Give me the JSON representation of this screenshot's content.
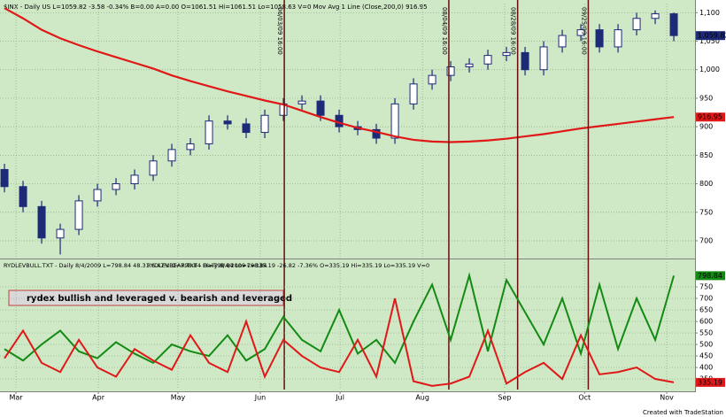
{
  "chart_data": [
    {
      "type": "candlestick",
      "title": "$INX - Daily US  L=1059.82 -3.58 -0.34% B=0.00 A=0.00 O=1061.51 Hi=1061.51 Lo=1058.63 V=0  Mov Avg 1 Line (Close,200,0)  916.95",
      "color": "#1c2a78",
      "open": [
        825,
        795,
        760,
        705,
        720,
        770,
        790,
        800,
        815,
        840,
        860,
        870,
        910,
        905,
        890,
        920,
        940,
        945,
        920,
        900,
        895,
        880,
        940,
        975,
        990,
        1005,
        1010,
        1025,
        1030,
        1000,
        1040,
        1060,
        1070,
        1040,
        1070,
        1090,
        1098
      ],
      "high": [
        835,
        805,
        770,
        730,
        780,
        800,
        810,
        825,
        850,
        870,
        880,
        920,
        920,
        915,
        930,
        950,
        955,
        955,
        930,
        910,
        905,
        950,
        985,
        1000,
        1015,
        1020,
        1035,
        1040,
        1040,
        1050,
        1070,
        1080,
        1080,
        1080,
        1100,
        1104,
        1100
      ],
      "low": [
        785,
        750,
        695,
        676,
        710,
        760,
        780,
        790,
        805,
        830,
        850,
        860,
        895,
        880,
        880,
        910,
        930,
        910,
        890,
        885,
        870,
        870,
        930,
        965,
        980,
        995,
        1000,
        1015,
        990,
        990,
        1030,
        1050,
        1030,
        1030,
        1060,
        1080,
        1050
      ],
      "close": [
        795,
        760,
        705,
        720,
        770,
        790,
        800,
        815,
        840,
        860,
        870,
        910,
        905,
        890,
        920,
        940,
        945,
        920,
        900,
        895,
        880,
        940,
        975,
        990,
        1005,
        1010,
        1025,
        1030,
        1000,
        1040,
        1060,
        1070,
        1040,
        1070,
        1090,
        1098,
        1059.82
      ],
      "last_label": "1,059.82",
      "overlay": {
        "color": "#e01818",
        "values": [
          1108,
          1090,
          1070,
          1055,
          1043,
          1032,
          1022,
          1012,
          1002,
          990,
          980,
          971,
          962,
          954,
          946,
          939,
          928,
          917,
          907,
          898,
          891,
          883,
          877,
          874,
          873,
          874,
          876,
          879,
          883,
          887,
          892,
          897,
          901,
          905,
          909,
          913,
          916.95
        ]
      },
      "markers": [
        {
          "x": 15.05,
          "label": "06/03/09 16:00"
        },
        {
          "x": 23.9,
          "label": "08/04/09 16:00"
        },
        {
          "x": 27.6,
          "label": "08/28/09 16:00"
        },
        {
          "x": 31.4,
          "label": "09/25/09 16:00"
        }
      ],
      "marker_color": "#6a0c0c",
      "xlim": [
        -0.24,
        37.14
      ],
      "ylim": [
        672,
        1116
      ],
      "yticks": [
        {
          "value": 1100,
          "label": "1,100"
        },
        {
          "value": 1050,
          "label": "1,050"
        },
        {
          "value": 1000,
          "label": "1,000"
        },
        950,
        900,
        850,
        800,
        750,
        700
      ],
      "grid": true
    },
    {
      "type": "line",
      "annotation": "rydex bullish and leveraged v. bearish and leveraged",
      "series": [
        {
          "name": "RYDLEVBULL.TXT - Daily 8/4/2009  L=798.84 48.31 6.47% O=798.84 Hi=798.84 Lo=798.84",
          "color": "#138a13",
          "values": [
            480,
            430,
            500,
            560,
            470,
            440,
            510,
            460,
            420,
            500,
            470,
            450,
            540,
            430,
            480,
            620,
            520,
            470,
            650,
            460,
            520,
            420,
            600,
            760,
            520,
            800,
            470,
            780,
            640,
            500,
            700,
            460,
            760,
            480,
            700,
            520,
            798.84
          ]
        },
        {
          "name": "RYDLEVBEAR.TXT - Daily 8/4/2009  L=335.19 -26.82 -7.36% O=335.19 Hi=335.19 Lo=335.19 V=0",
          "color": "#e01818",
          "values": [
            440,
            560,
            420,
            380,
            520,
            400,
            360,
            480,
            430,
            390,
            540,
            420,
            380,
            600,
            360,
            520,
            450,
            400,
            380,
            520,
            360,
            700,
            340,
            320,
            330,
            360,
            560,
            330,
            380,
            420,
            350,
            540,
            370,
            380,
            400,
            350,
            335.19
          ]
        }
      ],
      "xlim": [
        -0.24,
        37.14
      ],
      "xticks": [
        {
          "value": 0.62,
          "label": "Mar"
        },
        {
          "value": 5.05,
          "label": "Apr"
        },
        {
          "value": 9.33,
          "label": "May"
        },
        {
          "value": 13.76,
          "label": "Jun"
        },
        {
          "value": 18.05,
          "label": "Jul"
        },
        {
          "value": 22.48,
          "label": "Aug"
        },
        {
          "value": 26.9,
          "label": "Sep"
        },
        {
          "value": 31.2,
          "label": "Oct"
        },
        {
          "value": 35.62,
          "label": "Nov"
        }
      ],
      "ylim": [
        304,
        858
      ],
      "yticks": [
        750,
        700,
        650,
        600,
        550,
        500,
        450,
        400,
        350
      ],
      "grid": true
    }
  ],
  "footer": "Created with TradeStation"
}
